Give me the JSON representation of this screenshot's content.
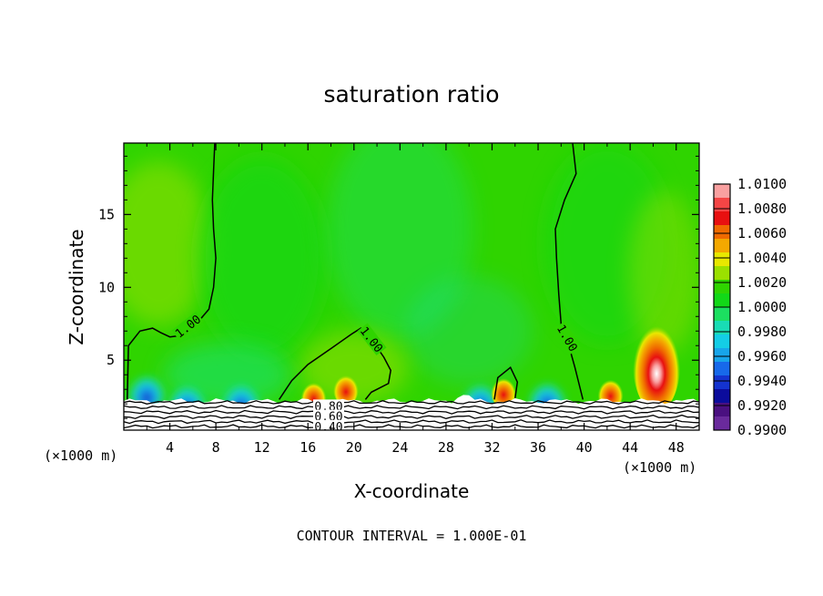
{
  "chart_data": {
    "type": "heatmap",
    "title": "saturation ratio",
    "xlabel": "X-coordinate",
    "ylabel": "Z-coordinate",
    "x_unit": "(×1000 m)",
    "xlim": [
      0,
      50
    ],
    "ylim": [
      0.2,
      19.9
    ],
    "x_ticks": [
      4,
      8,
      12,
      16,
      20,
      24,
      28,
      32,
      36,
      40,
      44,
      48
    ],
    "y_ticks": [
      5,
      10,
      15
    ],
    "footer": "CONTOUR INTERVAL = 1.000E-01",
    "colorbar": {
      "levels": [
        "1.0100",
        "1.0080",
        "1.0060",
        "1.0040",
        "1.0020",
        "1.0000",
        "0.9980",
        "0.9960",
        "0.9940",
        "0.9920",
        "0.9900"
      ],
      "colors": [
        "#f9a0a0",
        "#f44545",
        "#e81010",
        "#f06a00",
        "#f4a800",
        "#e8e800",
        "#9be000",
        "#2fd400",
        "#12d818",
        "#1ce060",
        "#19dcb5",
        "#14cde6",
        "#17a5ea",
        "#1769ea",
        "#1433cf",
        "#0b0c9c",
        "#4a1080",
        "#6a2a9c"
      ]
    },
    "contour_labels": [
      {
        "text": "1.00",
        "x": 5.6,
        "z": 7.3,
        "angle": -38
      },
      {
        "text": "1.00",
        "x": 21.5,
        "z": 6.4,
        "angle": 52
      },
      {
        "text": "1.00",
        "x": 38.5,
        "z": 6.5,
        "angle": 60
      },
      {
        "text": "0.80",
        "x": 17.8,
        "z": 1.8,
        "angle": 0
      },
      {
        "text": "0.60",
        "x": 17.8,
        "z": 1.1,
        "angle": 0
      },
      {
        "text": "0.40",
        "x": 17.8,
        "z": 0.4,
        "angle": 0
      }
    ],
    "warm_anomalies": [
      {
        "x": 46.3,
        "z": 3.6,
        "max": 1.01
      },
      {
        "x": 19.3,
        "z": 2.8,
        "max": 1.007
      },
      {
        "x": 33.0,
        "z": 2.6,
        "max": 1.006
      },
      {
        "x": 42.3,
        "z": 2.5,
        "max": 1.006
      },
      {
        "x": 16.5,
        "z": 2.3,
        "max": 1.004
      }
    ],
    "cold_anomalies": [
      {
        "x": 10.2,
        "z": 2.4,
        "min": 0.993
      },
      {
        "x": 5.5,
        "z": 2.3,
        "min": 0.994
      },
      {
        "x": 31.0,
        "z": 2.4,
        "min": 0.993
      },
      {
        "x": 36.8,
        "z": 2.5,
        "min": 0.995
      },
      {
        "x": 2.0,
        "z": 3.0,
        "min": 0.996
      }
    ]
  }
}
